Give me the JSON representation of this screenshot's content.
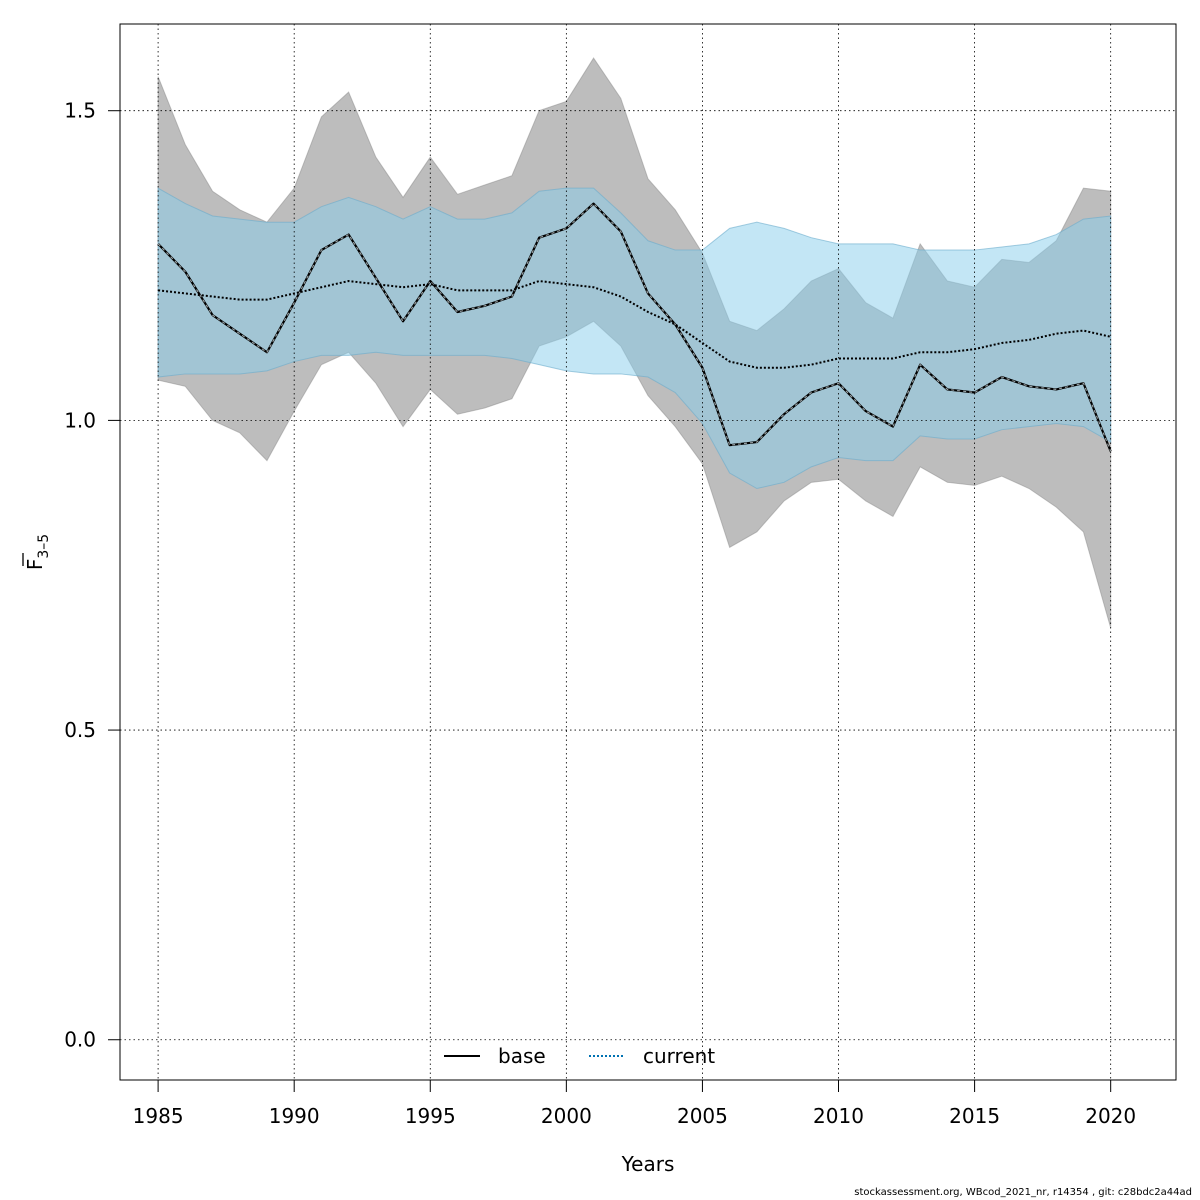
{
  "chart_data": {
    "type": "line",
    "xlabel": "Years",
    "ylabel_main": "F",
    "ylabel_sub": "3–5",
    "xlim": [
      1983.6,
      2022.4
    ],
    "ylim": [
      -0.065,
      1.64
    ],
    "xticks": [
      1985,
      1990,
      1995,
      2000,
      2005,
      2010,
      2015,
      2020
    ],
    "yticks": [
      0.0,
      0.5,
      1.0,
      1.5
    ],
    "ytick_labels": [
      "0.0",
      "0.5",
      "1.0",
      "1.5"
    ],
    "grid": true,
    "legend_position": "bottom",
    "x": [
      1985,
      1986,
      1987,
      1988,
      1989,
      1990,
      1991,
      1992,
      1993,
      1994,
      1995,
      1996,
      1997,
      1998,
      1999,
      2000,
      2001,
      2002,
      2003,
      2004,
      2005,
      2006,
      2007,
      2008,
      2009,
      2010,
      2011,
      2012,
      2013,
      2014,
      2015,
      2016,
      2017,
      2018,
      2019,
      2020
    ],
    "series": [
      {
        "name": "base",
        "color": "#000000",
        "line": "solid",
        "band_color": "#bdbdbd",
        "values": [
          1.285,
          1.24,
          1.17,
          1.14,
          1.11,
          1.19,
          1.275,
          1.3,
          1.23,
          1.16,
          1.225,
          1.175,
          1.185,
          1.2,
          1.295,
          1.31,
          1.35,
          1.305,
          1.205,
          1.155,
          1.085,
          0.96,
          0.965,
          1.01,
          1.045,
          1.06,
          1.015,
          0.99,
          1.09,
          1.05,
          1.045,
          1.07,
          1.055,
          1.05,
          1.06,
          0.95
        ],
        "lower": [
          1.065,
          1.055,
          1.0,
          0.98,
          0.935,
          1.015,
          1.09,
          1.11,
          1.06,
          0.99,
          1.05,
          1.01,
          1.02,
          1.035,
          1.12,
          1.135,
          1.16,
          1.12,
          1.04,
          0.99,
          0.93,
          0.795,
          0.82,
          0.87,
          0.9,
          0.905,
          0.87,
          0.845,
          0.925,
          0.9,
          0.895,
          0.91,
          0.89,
          0.86,
          0.82,
          0.665
        ],
        "upper": [
          1.555,
          1.445,
          1.37,
          1.34,
          1.32,
          1.375,
          1.49,
          1.53,
          1.425,
          1.36,
          1.425,
          1.365,
          1.38,
          1.395,
          1.5,
          1.515,
          1.585,
          1.52,
          1.39,
          1.34,
          1.27,
          1.16,
          1.145,
          1.18,
          1.225,
          1.245,
          1.19,
          1.165,
          1.285,
          1.225,
          1.215,
          1.26,
          1.255,
          1.29,
          1.375,
          1.37
        ]
      },
      {
        "name": "current",
        "color": "#0072b2",
        "line": "dotted",
        "band_color": "#87ceeb",
        "values": [
          1.21,
          1.205,
          1.2,
          1.195,
          1.195,
          1.205,
          1.215,
          1.225,
          1.22,
          1.215,
          1.22,
          1.21,
          1.21,
          1.21,
          1.225,
          1.22,
          1.215,
          1.2,
          1.175,
          1.155,
          1.125,
          1.095,
          1.085,
          1.085,
          1.09,
          1.1,
          1.1,
          1.1,
          1.11,
          1.11,
          1.115,
          1.125,
          1.13,
          1.14,
          1.145,
          1.135
        ],
        "lower": [
          1.07,
          1.075,
          1.075,
          1.075,
          1.08,
          1.095,
          1.105,
          1.105,
          1.11,
          1.105,
          1.105,
          1.105,
          1.105,
          1.1,
          1.09,
          1.08,
          1.075,
          1.075,
          1.07,
          1.045,
          0.995,
          0.915,
          0.89,
          0.9,
          0.925,
          0.94,
          0.935,
          0.935,
          0.975,
          0.97,
          0.97,
          0.985,
          0.99,
          0.995,
          0.99,
          0.965
        ],
        "upper": [
          1.375,
          1.35,
          1.33,
          1.325,
          1.32,
          1.32,
          1.345,
          1.36,
          1.345,
          1.325,
          1.345,
          1.325,
          1.325,
          1.335,
          1.37,
          1.375,
          1.375,
          1.335,
          1.29,
          1.275,
          1.275,
          1.31,
          1.32,
          1.31,
          1.295,
          1.285,
          1.285,
          1.285,
          1.275,
          1.275,
          1.275,
          1.28,
          1.285,
          1.3,
          1.325,
          1.33
        ]
      }
    ]
  },
  "footer": "stockassessment.org, WBcod_2021_nr, r14354 , git: c28bdc2a44ad"
}
